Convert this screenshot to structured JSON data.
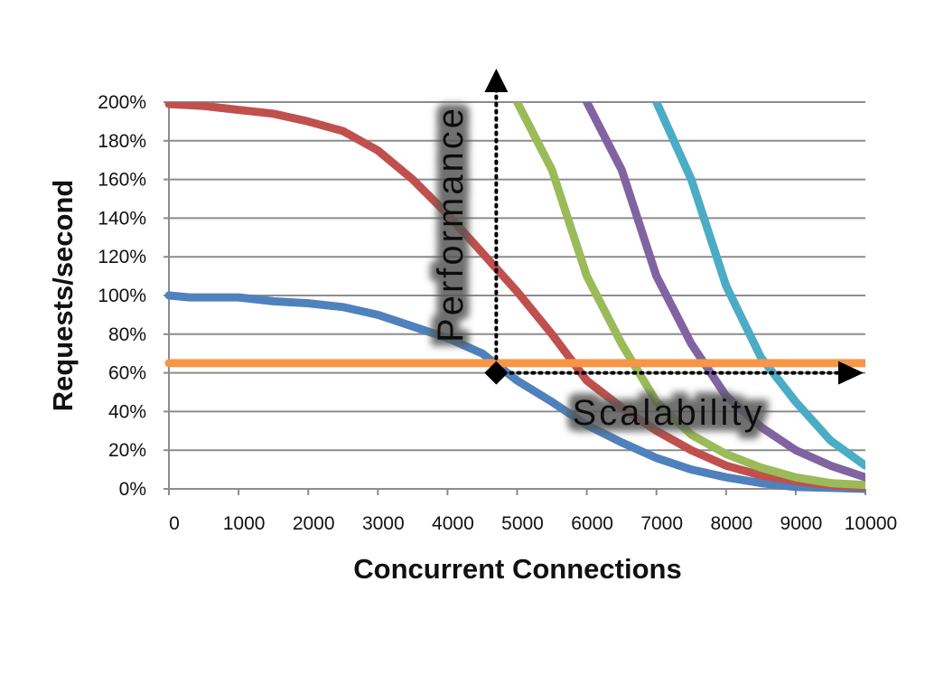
{
  "chart_data": {
    "type": "line",
    "title": "",
    "xlabel": "Concurrent Connections",
    "ylabel": "Requests/second",
    "xlim": [
      0,
      10000
    ],
    "ylim": [
      0,
      200
    ],
    "x_ticks": [
      "0",
      "1000",
      "2000",
      "3000",
      "4000",
      "5000",
      "6000",
      "7000",
      "8000",
      "9000",
      "10000"
    ],
    "y_ticks": [
      "0%",
      "20%",
      "40%",
      "60%",
      "80%",
      "100%",
      "120%",
      "140%",
      "160%",
      "180%",
      "200%"
    ],
    "grid": true,
    "legend": "none",
    "series": [
      {
        "color": "#4F81BD",
        "points": [
          [
            0,
            100
          ],
          [
            300,
            99
          ],
          [
            1000,
            99
          ],
          [
            1500,
            97
          ],
          [
            2000,
            96
          ],
          [
            2500,
            94
          ],
          [
            3000,
            90
          ],
          [
            3500,
            84
          ],
          [
            4000,
            78
          ],
          [
            4500,
            70
          ],
          [
            5000,
            56
          ],
          [
            5500,
            45
          ],
          [
            6000,
            33
          ],
          [
            6500,
            24
          ],
          [
            7000,
            16
          ],
          [
            7500,
            10
          ],
          [
            8000,
            6
          ],
          [
            8500,
            3
          ],
          [
            9000,
            1
          ],
          [
            9500,
            0.5
          ],
          [
            10000,
            0
          ]
        ]
      },
      {
        "color": "#C0504D",
        "points": [
          [
            0,
            199
          ],
          [
            500,
            198
          ],
          [
            1000,
            196
          ],
          [
            1500,
            194
          ],
          [
            2000,
            190
          ],
          [
            2500,
            185
          ],
          [
            3000,
            175
          ],
          [
            3500,
            160
          ],
          [
            4000,
            142
          ],
          [
            4500,
            122
          ],
          [
            5000,
            102
          ],
          [
            5500,
            80
          ],
          [
            6000,
            56
          ],
          [
            6500,
            42
          ],
          [
            7000,
            30
          ],
          [
            7500,
            20
          ],
          [
            8000,
            12
          ],
          [
            8500,
            7
          ],
          [
            9000,
            4
          ],
          [
            9500,
            2
          ],
          [
            10000,
            1
          ]
        ]
      },
      {
        "color": "#9BBB59",
        "points": [
          [
            5000,
            200
          ],
          [
            5500,
            165
          ],
          [
            6000,
            110
          ],
          [
            6500,
            75
          ],
          [
            7000,
            45
          ],
          [
            7500,
            28
          ],
          [
            8000,
            18
          ],
          [
            8500,
            11
          ],
          [
            9000,
            6
          ],
          [
            9500,
            3
          ],
          [
            10000,
            2
          ]
        ]
      },
      {
        "color": "#8064A2",
        "points": [
          [
            6000,
            200
          ],
          [
            6500,
            165
          ],
          [
            7000,
            110
          ],
          [
            7500,
            75
          ],
          [
            8000,
            48
          ],
          [
            8500,
            32
          ],
          [
            9000,
            20
          ],
          [
            9500,
            12
          ],
          [
            10000,
            6
          ]
        ]
      },
      {
        "color": "#4BACC6",
        "points": [
          [
            7000,
            200
          ],
          [
            7500,
            160
          ],
          [
            8000,
            105
          ],
          [
            8500,
            68
          ],
          [
            9000,
            45
          ],
          [
            9500,
            25
          ],
          [
            10000,
            12
          ]
        ]
      },
      {
        "color": "#F79646",
        "points": [
          [
            0,
            65
          ],
          [
            10000,
            65
          ]
        ]
      }
    ],
    "annotations": {
      "performance": "Performance",
      "scalability": "Scalability",
      "origin": [
        4700,
        60
      ]
    }
  }
}
